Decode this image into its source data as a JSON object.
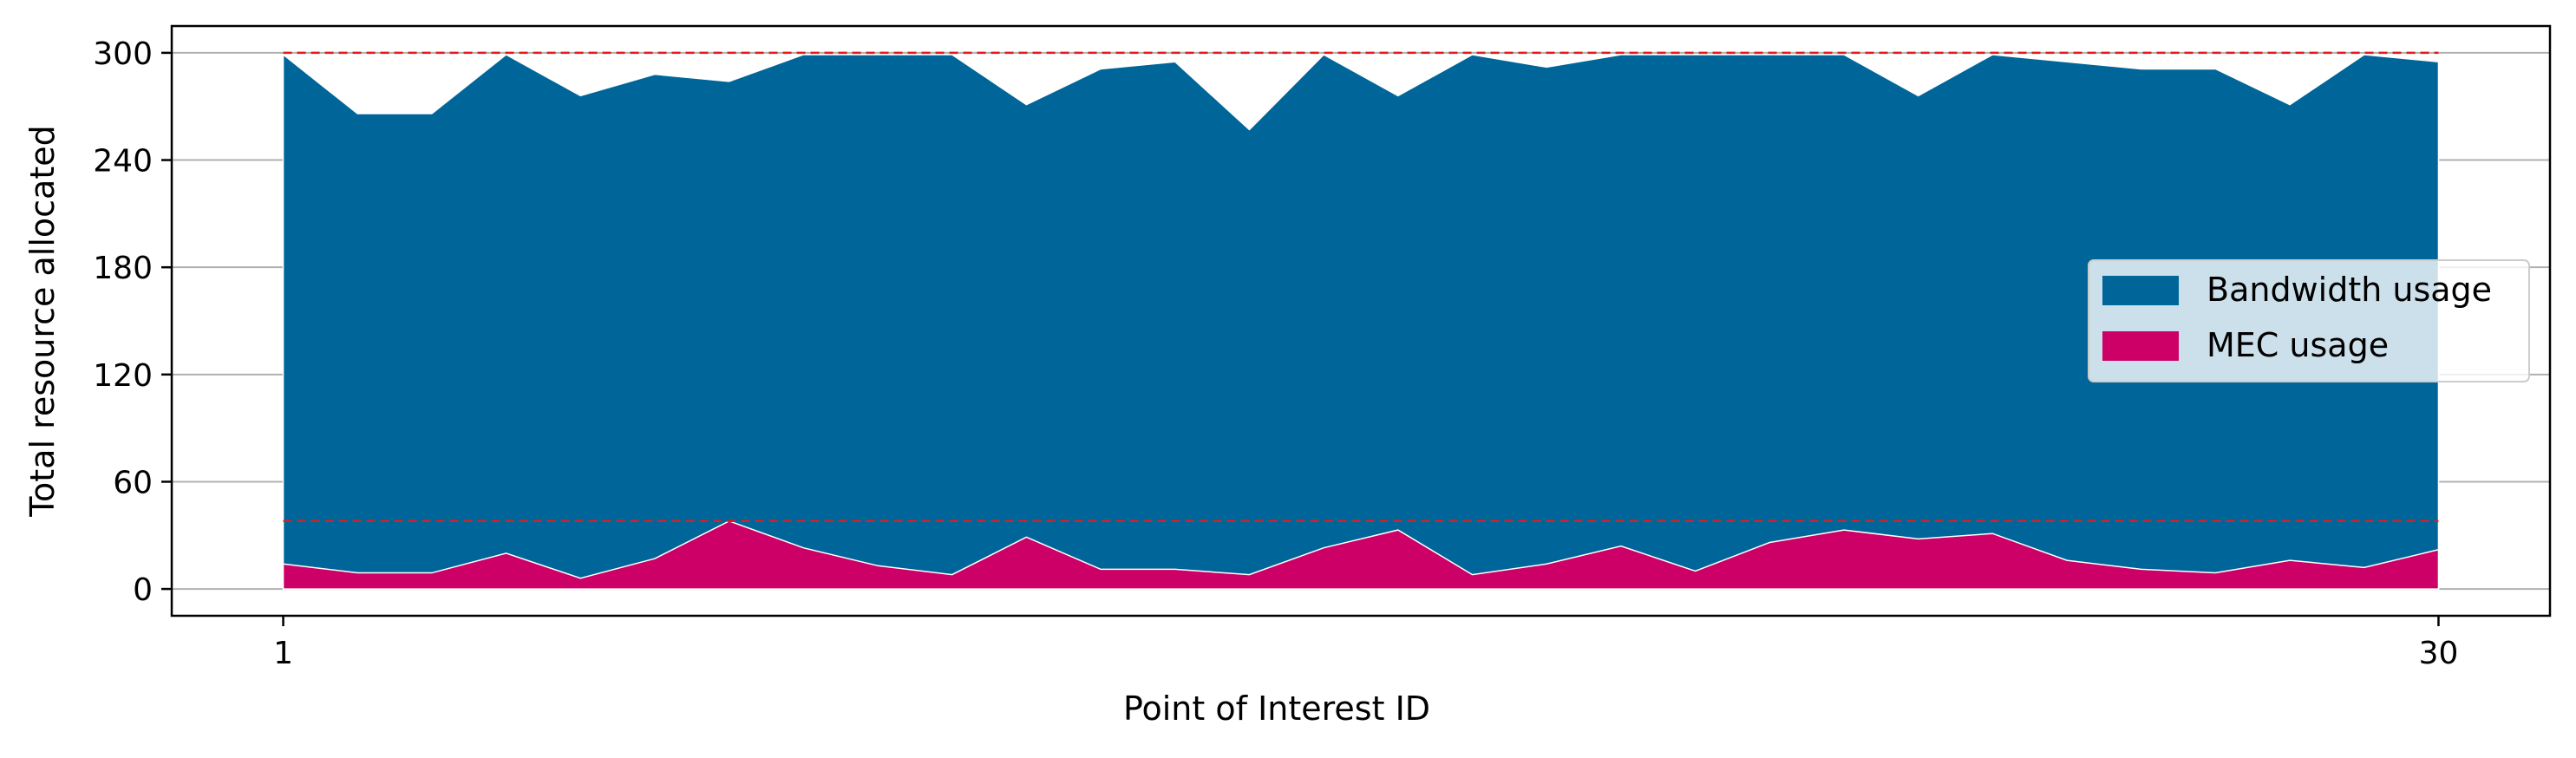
{
  "chart_data": {
    "type": "area",
    "title": "",
    "xlabel": "Point of Interest ID",
    "ylabel": "Total resource allocated",
    "x": [
      1,
      2,
      3,
      4,
      5,
      6,
      7,
      8,
      9,
      10,
      11,
      12,
      13,
      14,
      15,
      16,
      17,
      18,
      19,
      20,
      21,
      22,
      23,
      24,
      25,
      26,
      27,
      28,
      29,
      30
    ],
    "xticks": [
      1,
      30
    ],
    "yticks": [
      0,
      60,
      120,
      180,
      240,
      300
    ],
    "xlim": [
      -0.5,
      31.5
    ],
    "ylim": [
      -15,
      315
    ],
    "grid": "horizontal",
    "legend_position": "center-right",
    "series": [
      {
        "name": "Bandwidth usage",
        "color": "#006699",
        "values": [
          299,
          266,
          266,
          299,
          276,
          288,
          284,
          299,
          299,
          299,
          271,
          291,
          295,
          257,
          299,
          276,
          299,
          292,
          299,
          299,
          299,
          299,
          276,
          299,
          295,
          291,
          291,
          271,
          299,
          295
        ]
      },
      {
        "name": "MEC usage",
        "color": "#cc0066",
        "values": [
          14,
          9,
          9,
          20,
          6,
          17,
          38,
          23,
          13,
          8,
          29,
          11,
          11,
          8,
          23,
          33,
          8,
          14,
          24,
          10,
          26,
          33,
          28,
          31,
          16,
          11,
          9,
          16,
          12,
          22
        ]
      }
    ],
    "reference_lines": [
      {
        "y": 300,
        "color": "#e41a1c",
        "style": "dashed"
      },
      {
        "y": 38,
        "color": "#e41a1c",
        "style": "dashed"
      }
    ]
  }
}
